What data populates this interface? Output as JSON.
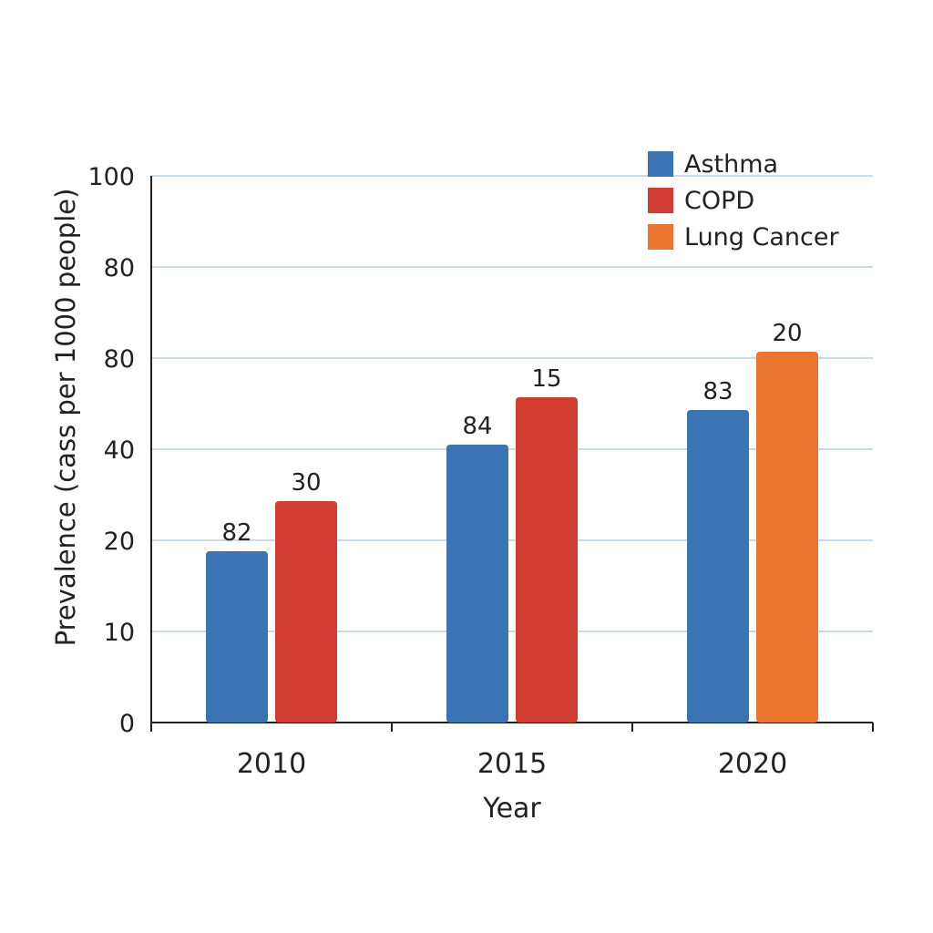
{
  "chart_data": {
    "type": "bar",
    "xlabel": "Year",
    "ylabel": "Prevalence (cass per 1000 people)",
    "categories": [
      "2010",
      "2015",
      "2020"
    ],
    "y_tick_labels": [
      "0",
      "10",
      "20",
      "40",
      "80",
      "80",
      "100"
    ],
    "grid": true,
    "legend_position": "top-right",
    "legend": [
      {
        "name": "Asthma",
        "color": "#3a74b4"
      },
      {
        "name": "COPD",
        "color": "#d13c31"
      },
      {
        "name": "Lung Cancer",
        "color": "#ec7530"
      }
    ],
    "bars": [
      {
        "category": "2010",
        "series": "Asthma",
        "height_level": 1.88,
        "label": "82"
      },
      {
        "category": "2010",
        "series": "COPD",
        "height_level": 2.43,
        "label": "30"
      },
      {
        "category": "2015",
        "series": "Asthma",
        "height_level": 3.05,
        "label": "84"
      },
      {
        "category": "2015",
        "series": "COPD",
        "height_level": 3.57,
        "label": "15"
      },
      {
        "category": "2020",
        "series": "Asthma",
        "height_level": 3.43,
        "label": "83"
      },
      {
        "category": "2020",
        "series": "Lung Cancer",
        "height_level": 4.07,
        "label": "20"
      }
    ]
  }
}
